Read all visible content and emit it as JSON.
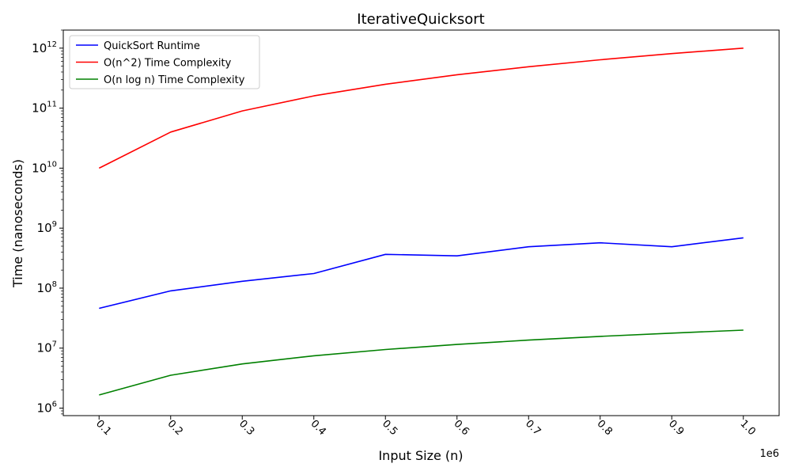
{
  "chart_data": {
    "type": "line",
    "title": "IterativeQuicksort",
    "xlabel": "Input Size (n)",
    "ylabel": "Time (nanoseconds)",
    "x_offset_label": "1e6",
    "y_scale": "log",
    "grid": false,
    "legend_position": "top-left",
    "x": [
      100000,
      200000,
      300000,
      400000,
      500000,
      600000,
      700000,
      800000,
      900000,
      1000000
    ],
    "xlim": [
      50000,
      1050000
    ],
    "ylim": [
      750000,
      2000000000000
    ],
    "x_ticks": [
      100000,
      200000,
      300000,
      400000,
      500000,
      600000,
      700000,
      800000,
      900000,
      1000000
    ],
    "x_tick_labels": [
      "0.1",
      "0.2",
      "0.3",
      "0.4",
      "0.5",
      "0.6",
      "0.7",
      "0.8",
      "0.9",
      "1.0"
    ],
    "y_ticks": [
      {
        "value": 1000000,
        "base": "10",
        "exp": "6"
      },
      {
        "value": 10000000,
        "base": "10",
        "exp": "7"
      },
      {
        "value": 100000000,
        "base": "10",
        "exp": "8"
      },
      {
        "value": 1000000000,
        "base": "10",
        "exp": "9"
      },
      {
        "value": 10000000000,
        "base": "10",
        "exp": "10"
      },
      {
        "value": 100000000000,
        "base": "10",
        "exp": "11"
      },
      {
        "value": 1000000000000,
        "base": "10",
        "exp": "12"
      }
    ],
    "series": [
      {
        "name": "QuickSort Runtime",
        "color": "#0000ff",
        "values": [
          46000000,
          90000000,
          130000000,
          175000000,
          365000000,
          345000000,
          490000000,
          570000000,
          490000000,
          690000000
        ]
      },
      {
        "name": "O(n^2) Time Complexity",
        "color": "#ff0000",
        "values": [
          10000000000,
          40000000000,
          90000000000,
          160000000000,
          250000000000,
          360000000000,
          490000000000,
          640000000000,
          810000000000,
          1000000000000
        ]
      },
      {
        "name": "O(n log n) Time Complexity",
        "color": "#008000",
        "values": [
          1660000,
          3530000,
          5460000,
          7450000,
          9470000,
          11520000,
          13590000,
          15680000,
          17790000,
          19930000
        ]
      }
    ]
  }
}
